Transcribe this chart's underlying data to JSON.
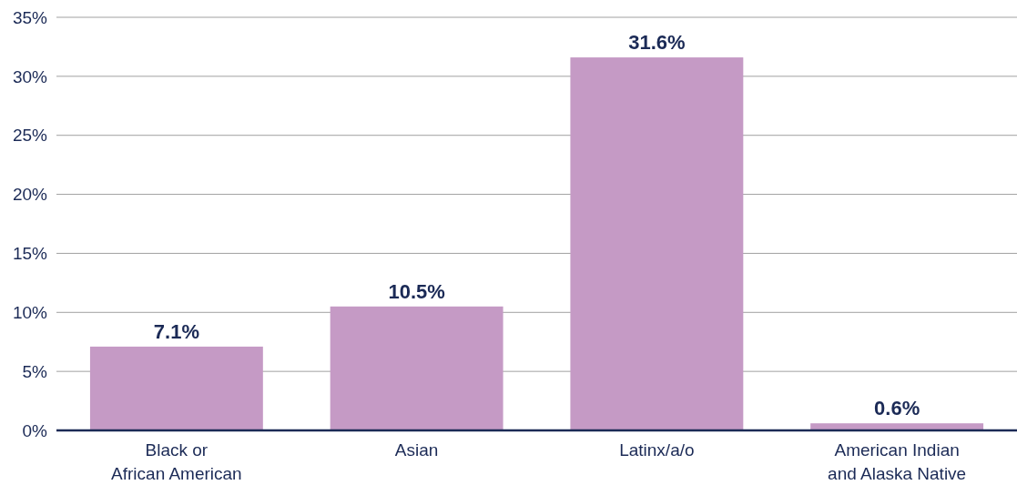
{
  "chart_data": {
    "type": "bar",
    "categories": [
      "Black or\nAfrican American",
      "Asian",
      "Latinx/a/o",
      "American Indian\nand Alaska Native"
    ],
    "values": [
      7.1,
      10.5,
      31.6,
      0.6
    ],
    "color": "#c59ac5",
    "value_labels": [
      "7.1%",
      "10.5%",
      "31.6%",
      "0.6%"
    ],
    "ylim": [
      0,
      35
    ],
    "yticks": [
      {
        "value": 0,
        "label": "0%"
      },
      {
        "value": 5,
        "label": "5%"
      },
      {
        "value": 10,
        "label": "10%"
      },
      {
        "value": 15,
        "label": "15%"
      },
      {
        "value": 20,
        "label": "20%"
      },
      {
        "value": 25,
        "label": "25%"
      },
      {
        "value": 30,
        "label": "30%"
      },
      {
        "value": 35,
        "label": "35%"
      }
    ],
    "grid": "y"
  }
}
